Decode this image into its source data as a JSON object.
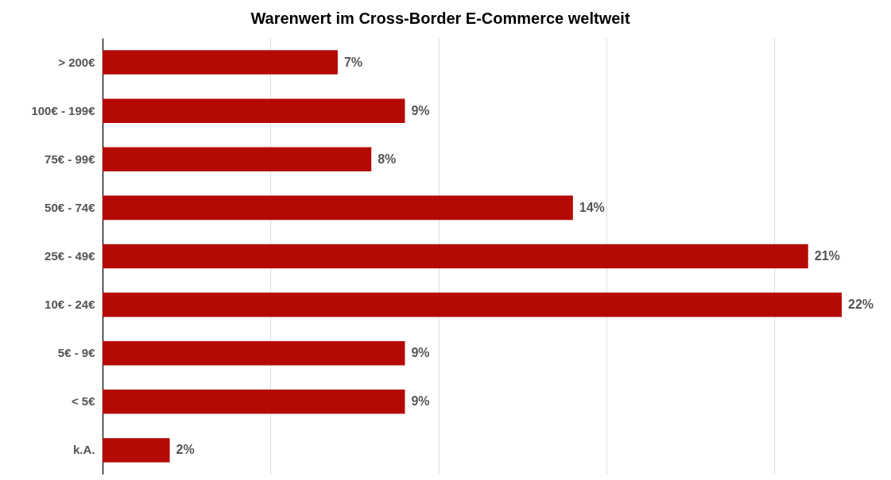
{
  "chart_data": {
    "type": "bar",
    "orientation": "horizontal",
    "title": "Warenwert im Cross-Border E-Commerce weltweit",
    "categories": [
      "> 200€",
      "100€ - 199€",
      "75€ - 99€",
      "50€ - 74€",
      "25€ - 49€",
      "10€ - 24€",
      "5€ - 9€",
      "< 5€",
      "k.A."
    ],
    "values": [
      7,
      9,
      8,
      14,
      21,
      22,
      9,
      9,
      2
    ],
    "value_labels": [
      "7%",
      "9%",
      "8%",
      "14%",
      "21%",
      "22%",
      "9%",
      "9%",
      "2%"
    ],
    "color": "#b50a04",
    "xticks": [
      {
        "value": 0,
        "label": null
      },
      {
        "value": 5,
        "label": null
      },
      {
        "value": 10,
        "label": null
      },
      {
        "value": 15,
        "label": null
      },
      {
        "value": 20,
        "label": null
      }
    ],
    "grid": "x",
    "tick_labels": "y"
  }
}
